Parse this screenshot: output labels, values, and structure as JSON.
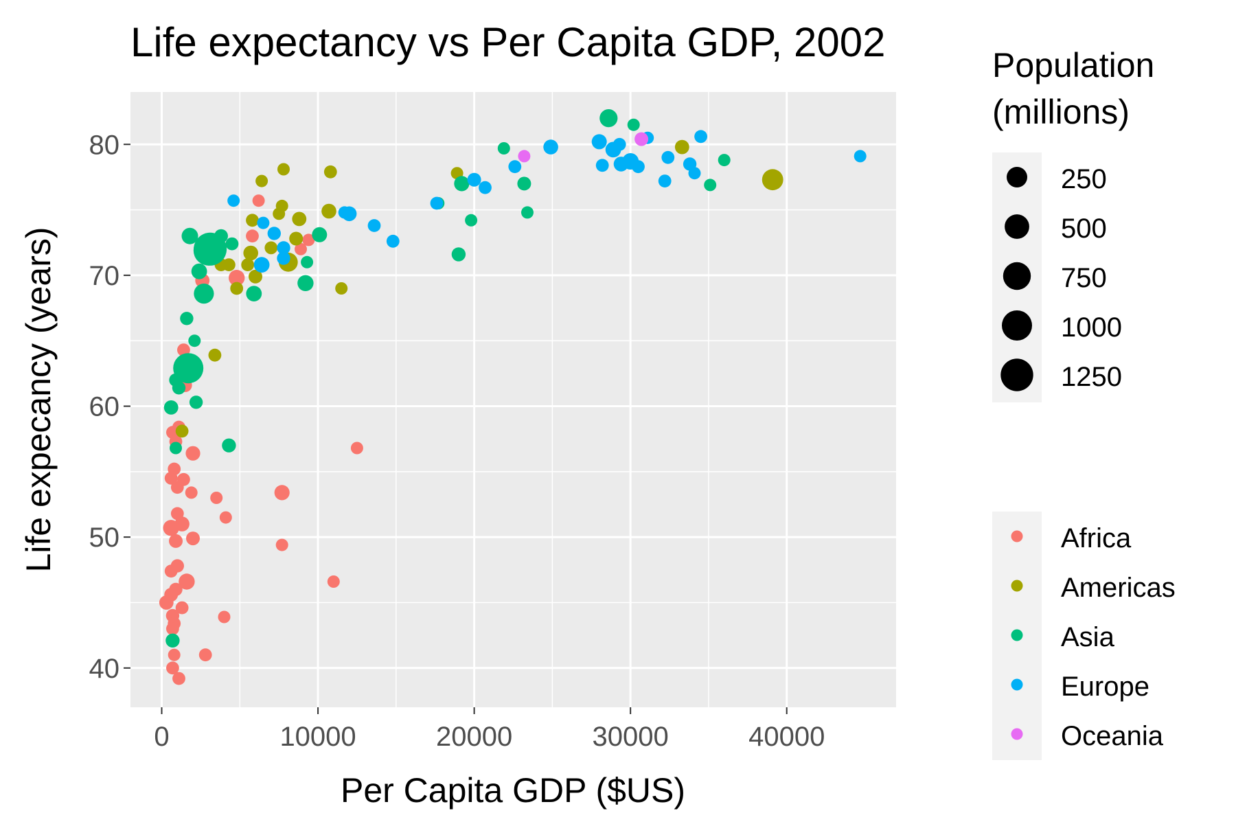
{
  "chart_data": {
    "type": "scatter",
    "title": "Life expectancy vs Per Capita GDP, 2002",
    "xlabel": "Per Capita GDP ($US)",
    "ylabel": "Life expecancy (years)",
    "xlim": [
      -2000,
      47000
    ],
    "ylim": [
      37,
      84
    ],
    "x_ticks": [
      0,
      10000,
      20000,
      30000,
      40000
    ],
    "y_ticks": [
      40,
      50,
      60,
      70,
      80
    ],
    "grid": true,
    "legend_position": "right",
    "size_legend": {
      "title_line1": "Population",
      "title_line2": "(millions)",
      "values": [
        250,
        500,
        750,
        1000,
        1250
      ],
      "labels": [
        "250",
        "500",
        "750",
        "1000",
        "1250"
      ]
    },
    "color_legend": {
      "entries": [
        {
          "name": "Africa",
          "color": "#F8766D"
        },
        {
          "name": "Americas",
          "color": "#A3A500"
        },
        {
          "name": "Asia",
          "color": "#00BF7D"
        },
        {
          "name": "Europe",
          "color": "#00B0F6"
        },
        {
          "name": "Oceania",
          "color": "#E76BF3"
        }
      ]
    },
    "series": [
      {
        "continent": "Africa",
        "points": [
          [
            300,
            45,
            30
          ],
          [
            600,
            45.6,
            20
          ],
          [
            700,
            44,
            15
          ],
          [
            800,
            43.4,
            10
          ],
          [
            700,
            43,
            10
          ],
          [
            1300,
            44.6,
            10
          ],
          [
            4000,
            43.9,
            5
          ],
          [
            800,
            41,
            5
          ],
          [
            700,
            40,
            10
          ],
          [
            1100,
            39.2,
            10
          ],
          [
            2800,
            41,
            10
          ],
          [
            600,
            47.4,
            10
          ],
          [
            1000,
            47.8,
            15
          ],
          [
            1600,
            46.6,
            70
          ],
          [
            900,
            46,
            15
          ],
          [
            600,
            50.7,
            70
          ],
          [
            900,
            49.7,
            20
          ],
          [
            1300,
            51,
            40
          ],
          [
            1000,
            51.8,
            10
          ],
          [
            2000,
            49.9,
            20
          ],
          [
            4100,
            51.5,
            5
          ],
          [
            3500,
            53,
            5
          ],
          [
            7700,
            53.4,
            50
          ],
          [
            7700,
            49.4,
            5
          ],
          [
            11000,
            46.6,
            5
          ],
          [
            12500,
            56.8,
            5
          ],
          [
            600,
            54.5,
            10
          ],
          [
            800,
            55.2,
            10
          ],
          [
            1000,
            53.8,
            10
          ],
          [
            1400,
            54.4,
            10
          ],
          [
            1900,
            53.4,
            5
          ],
          [
            700,
            58,
            10
          ],
          [
            900,
            57.3,
            10
          ],
          [
            1100,
            58.4,
            10
          ],
          [
            2000,
            56.4,
            35
          ],
          [
            1500,
            62.2,
            15
          ],
          [
            1500,
            61.6,
            20
          ],
          [
            1400,
            64.3,
            10
          ],
          [
            2600,
            69.6,
            30
          ],
          [
            4800,
            69.8,
            70
          ],
          [
            5800,
            73,
            10
          ],
          [
            6200,
            75.7,
            5
          ],
          [
            8900,
            72,
            5
          ],
          [
            9400,
            72.7,
            5
          ]
        ]
      },
      {
        "continent": "Americas",
        "points": [
          [
            1300,
            58.1,
            10
          ],
          [
            3400,
            63.9,
            10
          ],
          [
            3800,
            70.8,
            10
          ],
          [
            4300,
            70.8,
            10
          ],
          [
            4800,
            69,
            10
          ],
          [
            5500,
            70.8,
            10
          ],
          [
            6000,
            69.9,
            20
          ],
          [
            5700,
            71.7,
            40
          ],
          [
            5800,
            74.2,
            10
          ],
          [
            7000,
            72.1,
            10
          ],
          [
            8100,
            71,
            175
          ],
          [
            8600,
            72.8,
            20
          ],
          [
            8800,
            74.3,
            30
          ],
          [
            7500,
            74.7,
            5
          ],
          [
            7700,
            75.3,
            5
          ],
          [
            6400,
            77.2,
            5
          ],
          [
            7800,
            78.1,
            5
          ],
          [
            10700,
            74.9,
            40
          ],
          [
            10800,
            77.9,
            10
          ],
          [
            11500,
            69,
            5
          ],
          [
            18900,
            77.8,
            5
          ],
          [
            33300,
            79.8,
            30
          ],
          [
            39100,
            77.3,
            280
          ]
        ]
      },
      {
        "continent": "Asia",
        "points": [
          [
            700,
            42.1,
            25
          ],
          [
            600,
            59.9,
            30
          ],
          [
            900,
            56.8,
            5
          ],
          [
            1100,
            61.4,
            15
          ],
          [
            900,
            62,
            15
          ],
          [
            1700,
            62.9,
            700
          ],
          [
            1700,
            62.9,
            1000
          ],
          [
            2100,
            65,
            5
          ],
          [
            2200,
            60.3,
            15
          ],
          [
            1600,
            66.7,
            15
          ],
          [
            2700,
            68.6,
            220
          ],
          [
            2400,
            70.3,
            60
          ],
          [
            3000,
            71.9,
            1000
          ],
          [
            3100,
            72,
            1300
          ],
          [
            3800,
            73,
            20
          ],
          [
            1800,
            73,
            80
          ],
          [
            4500,
            72.4,
            10
          ],
          [
            5900,
            68.6,
            60
          ],
          [
            9200,
            69.4,
            70
          ],
          [
            10100,
            73.1,
            45
          ],
          [
            4300,
            57,
            25
          ],
          [
            9300,
            71,
            5
          ],
          [
            17700,
            75.5,
            5
          ],
          [
            19000,
            71.6,
            25
          ],
          [
            19200,
            77,
            50
          ],
          [
            19800,
            74.2,
            5
          ],
          [
            21900,
            79.7,
            5
          ],
          [
            23200,
            77,
            20
          ],
          [
            23400,
            74.8,
            5
          ],
          [
            28600,
            82,
            130
          ],
          [
            30200,
            81.5,
            5
          ],
          [
            35100,
            76.9,
            5
          ],
          [
            36000,
            78.8,
            5
          ]
        ]
      },
      {
        "continent": "Europe",
        "points": [
          [
            4600,
            75.7,
            5
          ],
          [
            6500,
            74,
            5
          ],
          [
            6400,
            70.8,
            60
          ],
          [
            7200,
            73.2,
            15
          ],
          [
            7800,
            72.1,
            15
          ],
          [
            7800,
            71.3,
            15
          ],
          [
            11700,
            74.8,
            5
          ],
          [
            12000,
            74.7,
            40
          ],
          [
            13600,
            73.8,
            10
          ],
          [
            14800,
            72.6,
            10
          ],
          [
            17600,
            75.5,
            10
          ],
          [
            20000,
            77.3,
            20
          ],
          [
            20700,
            76.7,
            10
          ],
          [
            22600,
            78.3,
            10
          ],
          [
            24900,
            79.8,
            40
          ],
          [
            28000,
            80.2,
            45
          ],
          [
            28200,
            78.4,
            10
          ],
          [
            28900,
            79.6,
            60
          ],
          [
            29300,
            80,
            10
          ],
          [
            29400,
            78.5,
            40
          ],
          [
            30000,
            78.7,
            80
          ],
          [
            30500,
            78.3,
            10
          ],
          [
            31100,
            80.5,
            5
          ],
          [
            32200,
            77.2,
            10
          ],
          [
            32400,
            79,
            10
          ],
          [
            33800,
            78.5,
            15
          ],
          [
            34100,
            77.8,
            5
          ],
          [
            34500,
            80.6,
            10
          ],
          [
            44700,
            79.1,
            5
          ]
        ]
      },
      {
        "continent": "Oceania",
        "points": [
          [
            23200,
            79.1,
            5
          ],
          [
            30700,
            80.4,
            20
          ]
        ]
      }
    ]
  }
}
